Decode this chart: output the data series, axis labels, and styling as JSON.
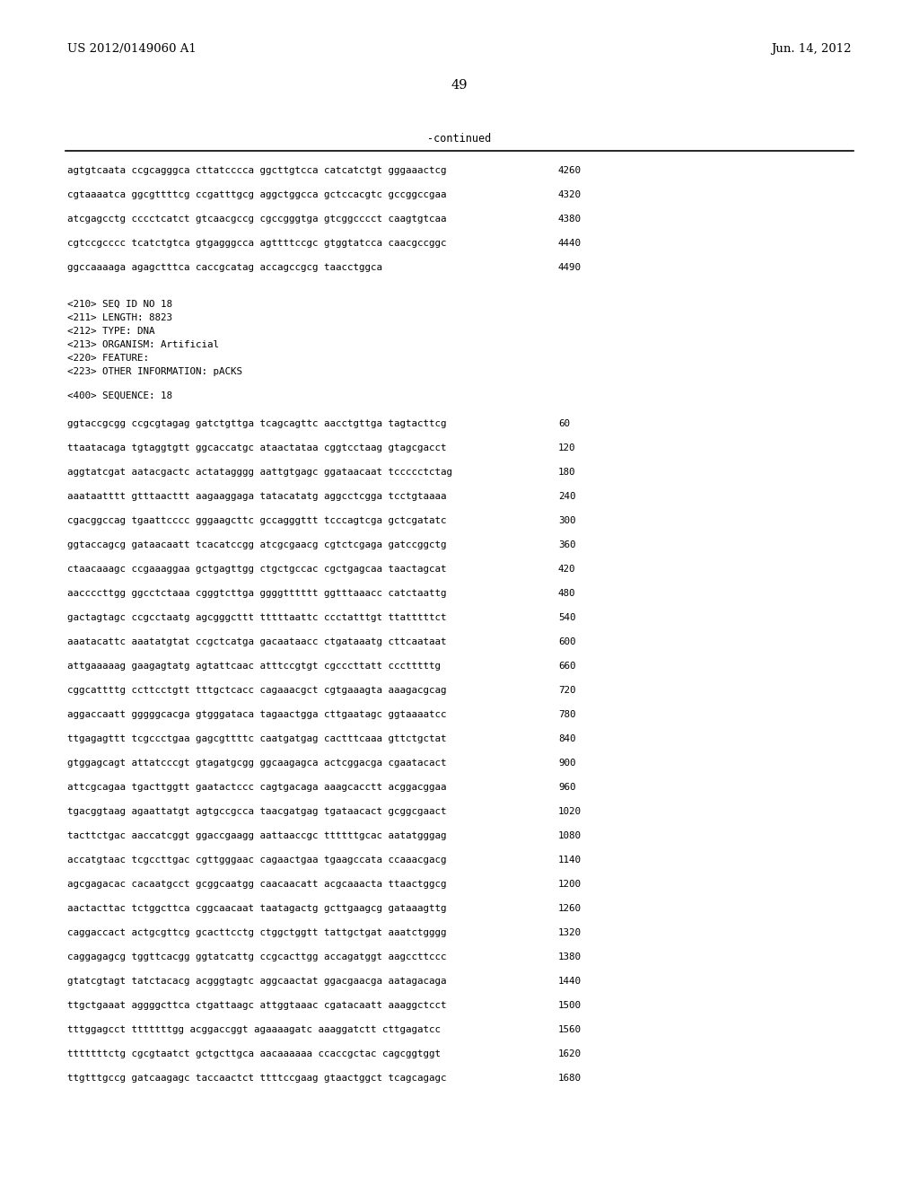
{
  "header_left": "US 2012/0149060 A1",
  "header_right": "Jun. 14, 2012",
  "page_number": "49",
  "continued_label": "-continued",
  "background_color": "#ffffff",
  "text_color": "#000000",
  "font_size_header": 9.5,
  "font_size_body": 7.8,
  "font_size_page": 10.5,
  "metadata_lines": [
    "<210> SEQ ID NO 18",
    "<211> LENGTH: 8823",
    "<212> TYPE: DNA",
    "<213> ORGANISM: Artificial",
    "<220> FEATURE:",
    "<223> OTHER INFORMATION: pACKS"
  ],
  "sequence_header": "<400> SEQUENCE: 18",
  "continued_sequences": [
    [
      "agtgtcaata ccgcagggca cttatcccca ggcttgtcca catcatctgt gggaaactcg",
      "4260"
    ],
    [
      "cgtaaaatca ggcgttttcg ccgatttgcg aggctggcca gctccacgtc gccggccgaa",
      "4320"
    ],
    [
      "atcgagcctg cccctcatct gtcaacgccg cgccgggtga gtcggcccct caagtgtcaa",
      "4380"
    ],
    [
      "cgtccgcccc tcatctgtca gtgagggcca agttttccgc gtggtatcca caacgccggc",
      "4440"
    ],
    [
      "ggccaaaaga agagctttca caccgcatag accagccgcg taacctggca",
      "4490"
    ]
  ],
  "new_sequences": [
    [
      "ggtaccgcgg ccgcgtagag gatctgttga tcagcagttc aacctgttga tagtacttcg",
      "60"
    ],
    [
      "ttaatacaga tgtaggtgtt ggcaccatgc ataactataa cggtcctaag gtagcgacct",
      "120"
    ],
    [
      "aggtatcgat aatacgactc actatagggg aattgtgagc ggataacaat tccccctctag",
      "180"
    ],
    [
      "aaataatttt gtttaacttt aagaaggaga tatacatatg aggcctcgga tcctgtaaaa",
      "240"
    ],
    [
      "cgacggccag tgaattcccc gggaagcttc gccagggttt tcccagtcga gctcgatatc",
      "300"
    ],
    [
      "ggtaccagcg gataacaatt tcacatccgg atcgcgaacg cgtctcgaga gatccggctg",
      "360"
    ],
    [
      "ctaacaaagc ccgaaaggaa gctgagttgg ctgctgccac cgctgagcaa taactagcat",
      "420"
    ],
    [
      "aaccccttgg ggcctctaaa cgggtcttga ggggtttttt ggtttaaacc catctaattg",
      "480"
    ],
    [
      "gactagtagc ccgcctaatg agcgggcttt tttttaattc ccctatttgt ttatttttct",
      "540"
    ],
    [
      "aaatacattc aaatatgtat ccgctcatga gacaataacc ctgataaatg cttcaataat",
      "600"
    ],
    [
      "attgaaaaag gaagagtatg agtattcaac atttccgtgt cgcccttatt ccctttttg",
      "660"
    ],
    [
      "cggcattttg ccttcctgtt tttgctcacc cagaaacgct cgtgaaagta aaagacgcag",
      "720"
    ],
    [
      "aggaccaatt gggggcacga gtgggataca tagaactgga cttgaatagc ggtaaaatcc",
      "780"
    ],
    [
      "ttgagagttt tcgccctgaa gagcgttttc caatgatgag cactttcaaa gttctgctat",
      "840"
    ],
    [
      "gtggagcagt attatcccgt gtagatgcgg ggcaagagca actcggacga cgaatacact",
      "900"
    ],
    [
      "attcgcagaa tgacttggtt gaatactccc cagtgacaga aaagcacctt acggacggaa",
      "960"
    ],
    [
      "tgacggtaag agaattatgt agtgccgcca taacgatgag tgataacact gcggcgaact",
      "1020"
    ],
    [
      "tacttctgac aaccatcggt ggaccgaagg aattaaccgc ttttttgcac aatatgggag",
      "1080"
    ],
    [
      "accatgtaac tcgccttgac cgttgggaac cagaactgaa tgaagccata ccaaacgacg",
      "1140"
    ],
    [
      "agcgagacac cacaatgcct gcggcaatgg caacaacatt acgcaaacta ttaactggcg",
      "1200"
    ],
    [
      "aactacttac tctggcttca cggcaacaat taatagactg gcttgaagcg gataaagttg",
      "1260"
    ],
    [
      "caggaccact actgcgttcg gcacttcctg ctggctggtt tattgctgat aaatctgggg",
      "1320"
    ],
    [
      "caggagagcg tggttcacgg ggtatcattg ccgcacttgg accagatggt aagccttccc",
      "1380"
    ],
    [
      "gtatcgtagt tatctacacg acgggtagtc aggcaactat ggacgaacga aatagacaga",
      "1440"
    ],
    [
      "ttgctgaaat aggggcttca ctgattaagc attggtaaac cgatacaatt aaaggctcct",
      "1500"
    ],
    [
      "tttggagcct tttttttgg acggaccggt agaaaagatc aaaggatctt cttgagatcc",
      "1560"
    ],
    [
      "tttttttctg cgcgtaatct gctgcttgca aacaaaaaa ccaccgctac cagcggtggt",
      "1620"
    ],
    [
      "ttgtttgccg gatcaagagc taccaactct ttttccgaag gtaactggct tcagcagagc",
      "1680"
    ]
  ]
}
